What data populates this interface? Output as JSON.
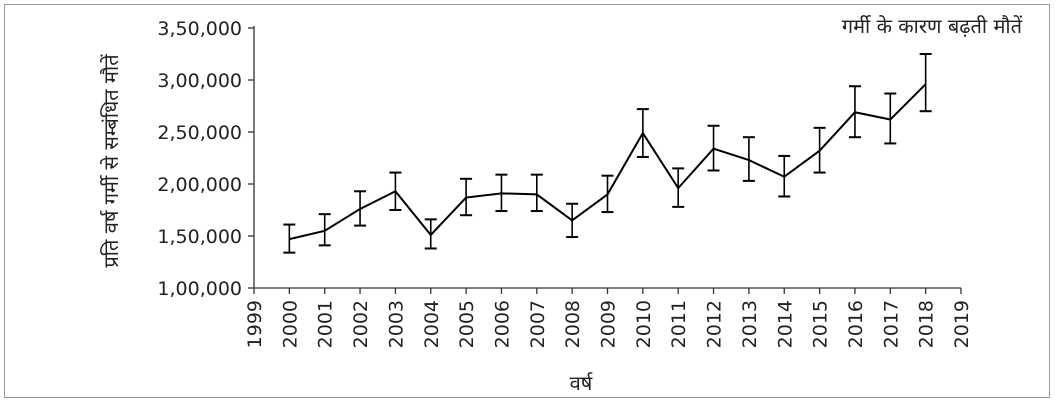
{
  "chart_data": {
    "type": "line",
    "title": "गर्मी के कारण बढ़ती मौतें",
    "xlabel": "वर्ष",
    "ylabel": "प्रति वर्ष गर्मी से सम्बंधित मौतें",
    "xlim": [
      1999,
      2019
    ],
    "ylim": [
      100000,
      350000
    ],
    "x_ticks": [
      "1999",
      "2000",
      "2001",
      "2002",
      "2003",
      "2004",
      "2005",
      "2006",
      "2007",
      "2008",
      "2009",
      "2010",
      "2011",
      "2012",
      "2013",
      "2014",
      "2015",
      "2016",
      "2017",
      "2018",
      "2019"
    ],
    "y_ticks": [
      {
        "value": 100000,
        "label": "1,00,000"
      },
      {
        "value": 150000,
        "label": "1,50,000"
      },
      {
        "value": 200000,
        "label": "2,00,000"
      },
      {
        "value": 250000,
        "label": "2,50,000"
      },
      {
        "value": 300000,
        "label": "3,00,000"
      },
      {
        "value": 350000,
        "label": "3,50,000"
      }
    ],
    "grid": false,
    "line_color": "#000000",
    "series": [
      {
        "x": [
          2000,
          2001,
          2002,
          2003,
          2004,
          2005,
          2006,
          2007,
          2008,
          2009,
          2010,
          2011,
          2012,
          2013,
          2014,
          2015,
          2016,
          2017,
          2018
        ],
        "values": [
          147000,
          155000,
          176000,
          193000,
          151000,
          187000,
          191000,
          190000,
          165000,
          190000,
          249000,
          196000,
          234000,
          223000,
          207000,
          232000,
          269000,
          262000,
          296000
        ],
        "error_low": [
          134000,
          141000,
          160000,
          175000,
          138000,
          170000,
          174000,
          174000,
          149000,
          173000,
          226000,
          178000,
          213000,
          203000,
          188000,
          211000,
          245000,
          239000,
          270000
        ],
        "error_high": [
          161000,
          171000,
          193000,
          211000,
          166000,
          205000,
          209000,
          209000,
          181000,
          208000,
          272000,
          215000,
          256000,
          245000,
          227000,
          254000,
          294000,
          287000,
          325000
        ]
      }
    ]
  }
}
